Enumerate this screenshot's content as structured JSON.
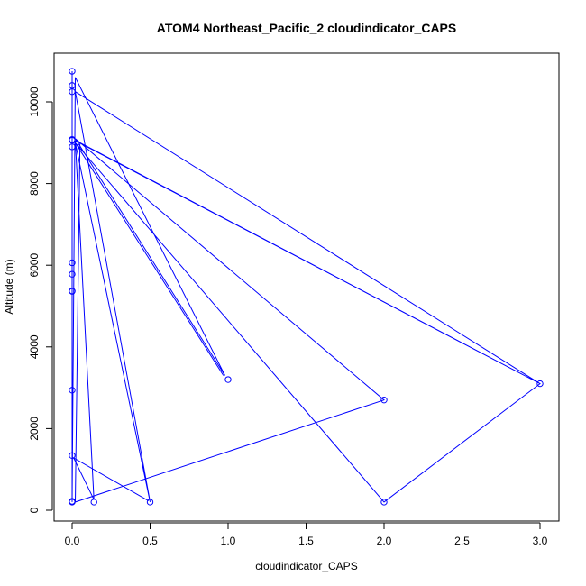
{
  "chart_data": {
    "type": "line",
    "title": "ATOM4 Northeast_Pacific_2 cloudindicator_CAPS",
    "xlabel": "cloudindicator_CAPS",
    "ylabel": "Altitude (m)",
    "xlim": [
      0,
      3.0
    ],
    "ylim": [
      0,
      10750
    ],
    "x_ticks": [
      "0.0",
      "0.5",
      "1.0",
      "1.5",
      "2.0",
      "2.5",
      "3.0"
    ],
    "y_ticks": [
      "0",
      "2000",
      "4000",
      "6000",
      "8000",
      "10000"
    ],
    "series_color": "#0000ff",
    "points": [
      {
        "x": 0,
        "y": 10750
      },
      {
        "x": 0,
        "y": 10400
      },
      {
        "x": 0,
        "y": 10250
      },
      {
        "x": 0,
        "y": 9080
      },
      {
        "x": 0,
        "y": 9060
      },
      {
        "x": 0,
        "y": 8900
      },
      {
        "x": 0,
        "y": 6060
      },
      {
        "x": 0,
        "y": 5780
      },
      {
        "x": 0,
        "y": 5370
      },
      {
        "x": 0,
        "y": 5360
      },
      {
        "x": 0,
        "y": 2940
      },
      {
        "x": 0,
        "y": 1340
      },
      {
        "x": 0,
        "y": 220
      },
      {
        "x": 0,
        "y": 200
      },
      {
        "x": 0.14,
        "y": 200
      },
      {
        "x": 0.5,
        "y": 200
      },
      {
        "x": 1.0,
        "y": 3200
      },
      {
        "x": 2.0,
        "y": 2700
      },
      {
        "x": 2.0,
        "y": 200
      },
      {
        "x": 3.0,
        "y": 3100
      }
    ],
    "path": [
      {
        "x": 0,
        "y": 10750
      },
      {
        "x": 0,
        "y": 10400
      },
      {
        "x": 0,
        "y": 10250
      },
      {
        "x": 0,
        "y": 9080
      },
      {
        "x": 0,
        "y": 9060
      },
      {
        "x": 0,
        "y": 8900
      },
      {
        "x": 0,
        "y": 6060
      },
      {
        "x": 0,
        "y": 5780
      },
      {
        "x": 0,
        "y": 5370
      },
      {
        "x": 0,
        "y": 2940
      },
      {
        "x": 0,
        "y": 220
      },
      {
        "x": 0,
        "y": 200
      },
      {
        "x": 0.02,
        "y": 10600
      },
      {
        "x": 0.98,
        "y": 3300
      },
      {
        "x": 0.02,
        "y": 9100
      },
      {
        "x": 2.0,
        "y": 2700
      },
      {
        "x": 0.02,
        "y": 200
      },
      {
        "x": 0.05,
        "y": 9000
      },
      {
        "x": 3.0,
        "y": 3100
      },
      {
        "x": 2.0,
        "y": 200
      },
      {
        "x": 0.02,
        "y": 9000
      },
      {
        "x": 0.97,
        "y": 3300
      },
      {
        "x": 0.02,
        "y": 9000
      },
      {
        "x": 0.5,
        "y": 200
      },
      {
        "x": 0.02,
        "y": 10250
      },
      {
        "x": 3.0,
        "y": 3100
      },
      {
        "x": 0.02,
        "y": 9050
      },
      {
        "x": 0.14,
        "y": 260
      },
      {
        "x": 0.01,
        "y": 1280
      },
      {
        "x": 0.49,
        "y": 230
      }
    ]
  }
}
